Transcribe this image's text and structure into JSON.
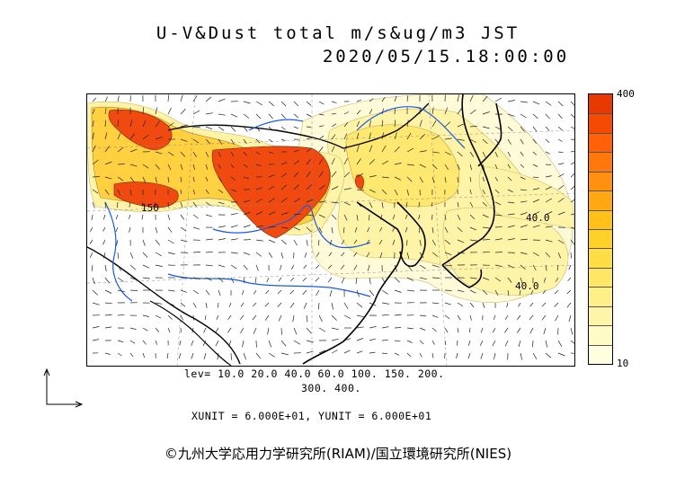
{
  "title": {
    "line1": "U-V&Dust total m/s&ug/m3 JST",
    "line2": "2020/05/15.18:00:00"
  },
  "colorbar": {
    "max_label": "400",
    "min_label": "10",
    "colors": [
      "#ffffe0",
      "#fffbc4",
      "#fff5a8",
      "#ffef88",
      "#ffe766",
      "#ffdd44",
      "#ffd02a",
      "#ffc01a",
      "#ffa814",
      "#ff9010",
      "#ff780c",
      "#ff6008",
      "#f44a04",
      "#e83a00"
    ]
  },
  "contour_labels": {
    "label_a": "150",
    "label_b": "40.0",
    "label_c": "40.0"
  },
  "levels": {
    "line1": "lev= 10.0 20.0 40.0 60.0 100. 150. 200.",
    "line2": "300. 400."
  },
  "units": "XUNIT = 6.000E+01, YUNIT = 6.000E+01",
  "copyright": "©九州大学応用力学研究所(RIAM)/国立環境研究所(NIES)",
  "colors": {
    "high": "#f04a10",
    "mid": "#ffd54a",
    "low": "#fff3a8",
    "lowest": "#fffbd8",
    "coast": "#000000",
    "river": "#1a5ae6"
  }
}
